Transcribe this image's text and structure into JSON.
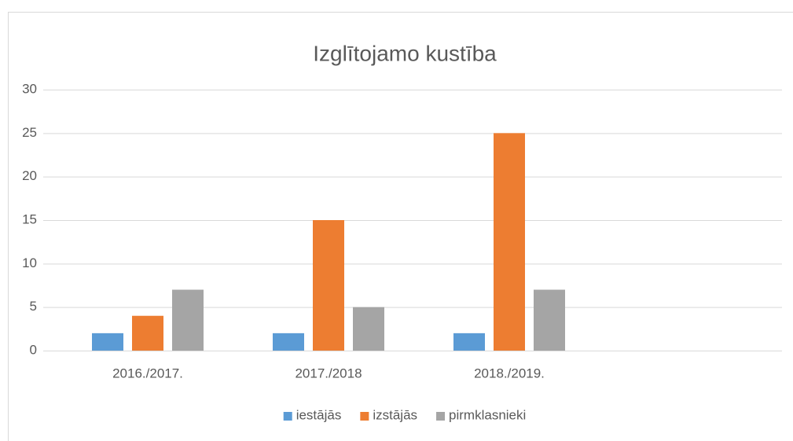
{
  "chart_data": {
    "type": "bar",
    "title": "Izglītojamo kustība",
    "categories": [
      "2016./2017.",
      "2017./2018",
      "2018./2019.",
      null
    ],
    "series": [
      {
        "name": "iestājās",
        "color": "#5b9bd5",
        "values": [
          2,
          2,
          2,
          null
        ]
      },
      {
        "name": "izstājās",
        "color": "#ed7d31",
        "values": [
          4,
          15,
          25,
          null
        ]
      },
      {
        "name": "pirmklasnieki",
        "color": "#a5a5a5",
        "values": [
          7,
          5,
          7,
          null
        ]
      }
    ],
    "ylim": [
      0,
      30
    ],
    "yticks": [
      0,
      5,
      10,
      15,
      20,
      25,
      30
    ],
    "grid": true,
    "legend": "bottom"
  }
}
